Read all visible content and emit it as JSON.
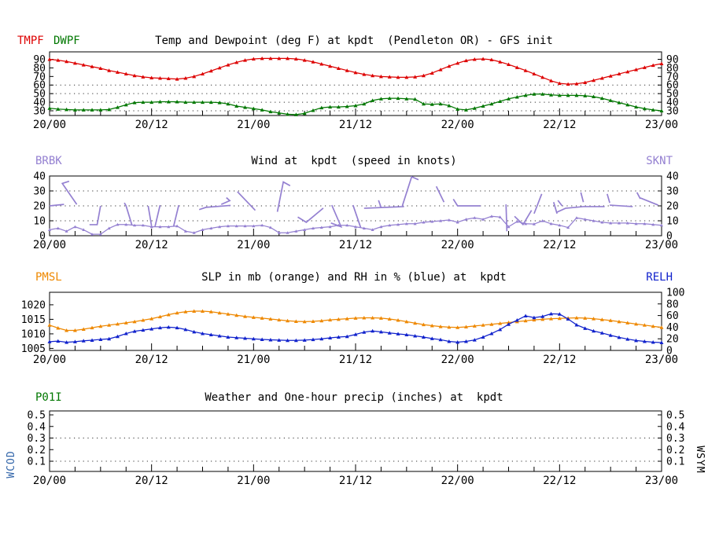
{
  "ui": {
    "panel1": {
      "legend_tmpf": "TMPF",
      "legend_dwpf": "DWPF",
      "title": "Temp and Dewpoint (deg F) at kpdt  (Pendleton OR) - GFS init"
    },
    "panel2": {
      "legend_left": "BRBK",
      "title": "Wind at  kpdt  (speed in knots)",
      "legend_right": "SKNT"
    },
    "panel3": {
      "legend_left": "PMSL",
      "title": "SLP in mb (orange) and RH in % (blue) at  kpdt",
      "legend_right": "RELH"
    },
    "panel4": {
      "legend_left": "P01I",
      "title": "Weather and One-hour precip (inches) at  kpdt"
    },
    "left_vertical_label": "WCOD",
    "right_vertical_label": "WSYM"
  },
  "colors": {
    "tmpf": "#dd0000",
    "dwpf": "#007700",
    "wind": "#9480d1",
    "pmsl": "#ee8800",
    "relh": "#1122cc",
    "wcod_label": "#3366aa",
    "wsym_label": "#000000",
    "axis": "#000000",
    "grid_dots": "#333333"
  },
  "xaxis": {
    "hours_total": 72,
    "minor_tick_every_h": 3,
    "major_tick_every_h": 12,
    "labels": [
      {
        "hour": 0,
        "label": "20/00"
      },
      {
        "hour": 12,
        "label": "20/12"
      },
      {
        "hour": 24,
        "label": "21/00"
      },
      {
        "hour": 36,
        "label": "21/12"
      },
      {
        "hour": 48,
        "label": "22/00"
      },
      {
        "hour": 60,
        "label": "22/12"
      },
      {
        "hour": 72,
        "label": "23/00"
      }
    ]
  },
  "chart_data": [
    {
      "id": "temp",
      "type": "line",
      "panel": "temp",
      "title": "Temp and Dewpoint (deg F) at kpdt  (Pendleton OR) - GFS init",
      "ylim": [
        24.5,
        98.7
      ],
      "yticks": [
        30,
        40,
        50,
        60,
        70,
        80,
        90
      ],
      "dotted_gridlines": [
        30,
        40,
        50,
        60
      ],
      "x_step_hours": 1,
      "series": [
        {
          "name": "TMPF",
          "color": "tmpf",
          "values": [
            90,
            89,
            87.5,
            85.5,
            83.5,
            81.5,
            79.5,
            77,
            75,
            73,
            71,
            69.5,
            68.5,
            68,
            67.5,
            67,
            68,
            70,
            73,
            76.5,
            80,
            83.5,
            86.5,
            89,
            90.5,
            91,
            91,
            91,
            91,
            90.5,
            89,
            87,
            84.5,
            82,
            79.5,
            77,
            74.5,
            72.5,
            71,
            70,
            69.5,
            69,
            69,
            69.5,
            71,
            74,
            78,
            82,
            85.5,
            88.5,
            90,
            90.5,
            89.5,
            87,
            84,
            80.5,
            77,
            73,
            69,
            65,
            62,
            61,
            61.5,
            63,
            65.5,
            68,
            70.5,
            73,
            75.5,
            78,
            80.5,
            83,
            85
          ]
        },
        {
          "name": "DWPF",
          "color": "dwpf",
          "values": [
            33,
            32,
            31.5,
            31,
            31,
            31,
            31,
            31.5,
            34,
            37,
            39.5,
            40,
            40,
            40.5,
            40.5,
            40.5,
            40,
            40,
            40,
            40,
            39.5,
            38,
            35.5,
            34,
            32.5,
            31,
            29,
            27.5,
            26,
            25.5,
            27,
            30.5,
            33.5,
            34.5,
            34.5,
            35,
            36,
            38,
            42,
            44,
            44.5,
            44.5,
            44,
            43.5,
            38,
            37.5,
            38,
            36,
            32,
            31,
            33,
            35.5,
            38,
            41,
            44,
            46,
            48,
            49.5,
            49.5,
            48.5,
            48,
            48,
            48,
            47.5,
            46.5,
            44.5,
            42,
            39.5,
            37,
            34.5,
            32.5,
            31,
            30
          ]
        }
      ]
    },
    {
      "id": "wind",
      "type": "line",
      "panel": "wind",
      "title": "Wind at  kpdt  (speed in knots)",
      "ylim": [
        0,
        40
      ],
      "yticks": [
        0,
        10,
        20,
        30,
        40
      ],
      "dotted_gridlines": [
        10,
        20,
        30
      ],
      "x_step_hours": 1,
      "series": [
        {
          "name": "SKNT",
          "color": "wind",
          "values": [
            4,
            5,
            3,
            6,
            4,
            1,
            1,
            5,
            7.5,
            7.5,
            7,
            7,
            6,
            6,
            6,
            6.5,
            3,
            2,
            4,
            5,
            6,
            6.5,
            6.5,
            6.5,
            6.5,
            7,
            5.5,
            2,
            2,
            3,
            4,
            5,
            5.5,
            6,
            7,
            7,
            6,
            5,
            4,
            6,
            7,
            7.5,
            8,
            8,
            9,
            9.5,
            10,
            10.5,
            9,
            11,
            12,
            11,
            13,
            12.5,
            6,
            9.5,
            8,
            7.8,
            10,
            8,
            7,
            5.5,
            12,
            11,
            10,
            9,
            8.5,
            8.5,
            8.5,
            8,
            8,
            7.5,
            7
          ]
        }
      ],
      "wind_barbs_polylines_hour_knots": [
        [
          [
            0,
            20
          ],
          [
            1.7,
            21
          ]
        ],
        [
          [
            3.2,
            21
          ],
          [
            1.5,
            35
          ],
          [
            2.3,
            36.5
          ]
        ],
        [
          [
            4.7,
            7.4
          ],
          [
            5.6,
            7.4
          ],
          [
            6,
            20
          ]
        ],
        [
          [
            8.8,
            22
          ],
          [
            9,
            20
          ],
          [
            9.7,
            7
          ]
        ],
        [
          [
            11.6,
            20
          ],
          [
            12,
            6.5
          ]
        ],
        [
          [
            12.4,
            6
          ],
          [
            13,
            20.5
          ]
        ],
        [
          [
            15.2,
            20.5
          ],
          [
            14.6,
            6.5
          ]
        ],
        [
          [
            17.6,
            17.5
          ],
          [
            18.4,
            19
          ],
          [
            21.3,
            20.3
          ]
        ],
        [
          [
            20.2,
            21
          ],
          [
            21.2,
            23.5
          ],
          [
            20.8,
            25.5
          ]
        ],
        [
          [
            22.1,
            29.5
          ],
          [
            24.2,
            17
          ]
        ],
        [
          [
            26.8,
            16
          ],
          [
            27.5,
            36
          ],
          [
            28.3,
            33.5
          ]
        ],
        [
          [
            29.2,
            12.5
          ],
          [
            30.2,
            9
          ],
          [
            32.2,
            18.5
          ]
        ],
        [
          [
            33.2,
            20.5
          ],
          [
            34.3,
            6
          ],
          [
            33.1,
            8.5
          ]
        ],
        [
          [
            35.7,
            20.5
          ],
          [
            36.6,
            5.5
          ]
        ],
        [
          [
            37,
            18.4
          ],
          [
            41.7,
            19.5
          ]
        ],
        [
          [
            38.7,
            23.7
          ],
          [
            39,
            19
          ]
        ],
        [
          [
            41.5,
            20
          ],
          [
            42.6,
            39.5
          ],
          [
            43.4,
            37.5
          ]
        ],
        [
          [
            45.5,
            33
          ],
          [
            46.4,
            22.5
          ]
        ],
        [
          [
            47.5,
            24.5
          ],
          [
            48,
            20
          ],
          [
            50.7,
            20
          ]
        ],
        [
          [
            53.7,
            21
          ],
          [
            53.8,
            3
          ]
        ],
        [
          [
            54.7,
            13
          ],
          [
            55.7,
            7.5
          ],
          [
            56.7,
            17
          ]
        ],
        [
          [
            57,
            14.8
          ],
          [
            57.9,
            28
          ]
        ],
        [
          [
            59.3,
            22.5
          ],
          [
            59.7,
            14.8
          ]
        ],
        [
          [
            59.7,
            15.8
          ],
          [
            60.7,
            18.4
          ],
          [
            62.8,
            19.5
          ],
          [
            65.3,
            19.5
          ]
        ],
        [
          [
            59.8,
            23.7
          ],
          [
            60.3,
            20
          ]
        ],
        [
          [
            62.5,
            29
          ],
          [
            62.8,
            22.5
          ]
        ],
        [
          [
            65.6,
            28
          ],
          [
            65.9,
            22
          ]
        ],
        [
          [
            65.9,
            20.5
          ],
          [
            68.6,
            19.5
          ]
        ],
        [
          [
            69.1,
            29
          ],
          [
            69.5,
            24.7
          ]
        ],
        [
          [
            69.5,
            25.3
          ],
          [
            71.6,
            20.5
          ]
        ]
      ]
    },
    {
      "id": "slp_rh",
      "type": "line",
      "panel": "slp",
      "title": "SLP in mb (orange) and RH in % (blue) at  kpdt",
      "ylim": [
        1004.3,
        1024.3
      ],
      "yticks": [
        1005,
        1010,
        1015,
        1020
      ],
      "ylim_right": [
        0,
        100
      ],
      "yticks_right": [
        0,
        20,
        40,
        60,
        80,
        100
      ],
      "dotted_gridlines": [],
      "x_step_hours": 1,
      "series": [
        {
          "name": "PMSL",
          "color": "pmsl",
          "values": [
            1013,
            1012,
            1011.2,
            1011.2,
            1011.6,
            1012.1,
            1012.6,
            1013,
            1013.4,
            1013.8,
            1014.2,
            1014.7,
            1015.2,
            1015.9,
            1016.6,
            1017.2,
            1017.6,
            1017.8,
            1017.8,
            1017.6,
            1017.2,
            1016.8,
            1016.4,
            1016,
            1015.7,
            1015.4,
            1015.1,
            1014.8,
            1014.5,
            1014.3,
            1014.2,
            1014.3,
            1014.5,
            1014.8,
            1015,
            1015.2,
            1015.4,
            1015.5,
            1015.5,
            1015.4,
            1015.1,
            1014.7,
            1014.2,
            1013.7,
            1013.2,
            1012.8,
            1012.5,
            1012.3,
            1012.2,
            1012.4,
            1012.7,
            1013,
            1013.3,
            1013.6,
            1013.9,
            1014.2,
            1014.5,
            1014.8,
            1015,
            1015.2,
            1015.3,
            1015.4,
            1015.5,
            1015.4,
            1015.2,
            1014.9,
            1014.6,
            1014.2,
            1013.8,
            1013.4,
            1013,
            1012.6,
            1012.2
          ]
        },
        {
          "name": "RELH",
          "color": "relh",
          "axis": "right",
          "values": [
            15,
            16,
            14,
            15,
            16.5,
            17.5,
            19,
            20,
            24,
            29,
            33,
            35,
            37,
            39,
            40,
            39,
            36,
            32,
            29,
            27,
            25,
            23,
            22,
            21,
            20,
            19,
            18.3,
            17.7,
            17.3,
            17.3,
            17.7,
            18.7,
            20,
            21.7,
            23,
            24,
            27.5,
            31.5,
            33.5,
            32,
            30,
            28.5,
            27,
            25,
            23,
            20.5,
            18.5,
            15.5,
            14.2,
            15.5,
            18,
            23,
            29,
            36,
            45,
            52,
            59.5,
            56.5,
            58.5,
            63,
            62.5,
            54,
            44,
            38,
            33.5,
            30,
            26,
            22.5,
            19.5,
            17,
            15.5,
            14.2,
            13.5
          ]
        }
      ]
    },
    {
      "id": "precip",
      "type": "line",
      "panel": "precip",
      "title": "Weather and One-hour precip (inches) at  kpdt",
      "ylim": [
        0.012,
        0.534
      ],
      "yticks": [
        0.1,
        0.2,
        0.3,
        0.4,
        0.5
      ],
      "dotted_gridlines": [
        0.1,
        0.3
      ],
      "x_step_hours": 1,
      "series": [
        {
          "name": "P01I",
          "color": "dwpf",
          "values": []
        }
      ]
    }
  ]
}
